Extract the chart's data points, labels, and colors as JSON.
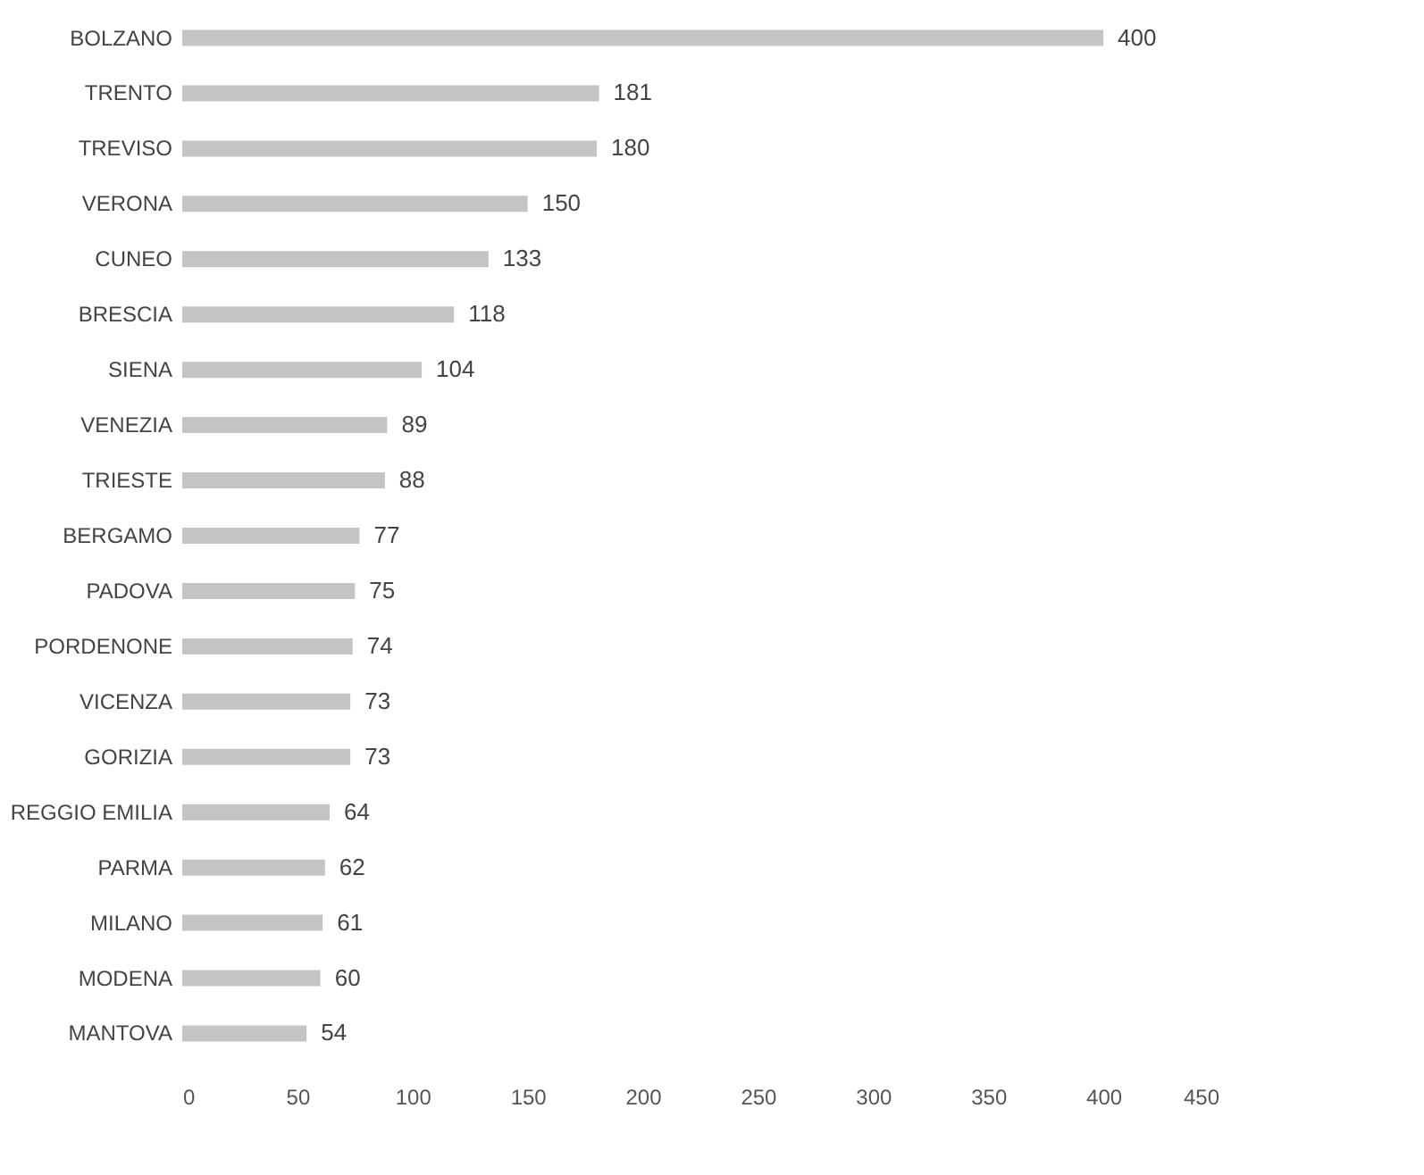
{
  "chart_data": {
    "type": "bar",
    "orientation": "horizontal",
    "categories": [
      "BOLZANO",
      "TRENTO",
      "TREVISO",
      "VERONA",
      "CUNEO",
      "BRESCIA",
      "SIENA",
      "VENEZIA",
      "TRIESTE",
      "BERGAMO",
      "PADOVA",
      "PORDENONE",
      "VICENZA",
      "GORIZIA",
      "REGGIO EMILIA",
      "PARMA",
      "MILANO",
      "MODENA",
      "MANTOVA"
    ],
    "values": [
      400,
      181,
      180,
      150,
      133,
      118,
      104,
      89,
      88,
      77,
      75,
      74,
      73,
      73,
      64,
      62,
      61,
      60,
      54
    ],
    "color": "#c4c4c4",
    "xlim": [
      0,
      450
    ],
    "xticks": [
      0,
      50,
      100,
      150,
      200,
      250,
      300,
      350,
      400,
      450
    ],
    "data_labels": true,
    "grid": false
  }
}
